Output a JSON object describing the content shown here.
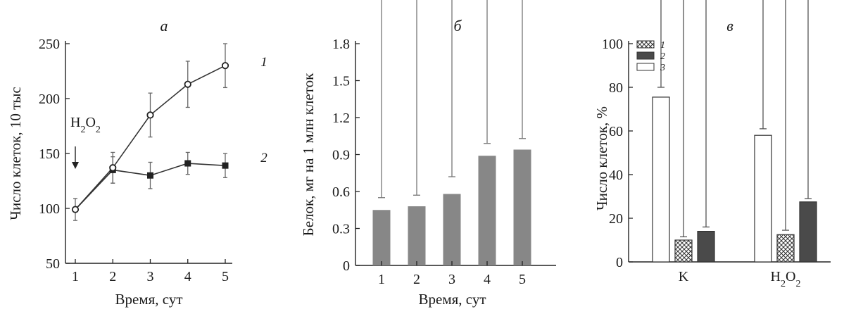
{
  "figure": {
    "panels": [
      {
        "letter": "а",
        "xlabel": "Время, сут",
        "ylabel": "Число клеток, 10 тыс",
        "annotation": "H₂O₂",
        "yticks": [
          50,
          100,
          150,
          200,
          250
        ],
        "xticks": [
          1,
          2,
          3,
          4,
          5
        ]
      },
      {
        "letter": "б",
        "xlabel": "Время, сут",
        "ylabel": "Белок, мг на 1 млн клеток",
        "yticks": [
          "0",
          "0.3",
          "0.6",
          "0.9",
          "1.2",
          "1.5",
          "1.8"
        ],
        "xticks": [
          1,
          2,
          3,
          4,
          5
        ]
      },
      {
        "letter": "в",
        "ylabel": "Число клеток, %",
        "yticks": [
          0,
          20,
          40,
          60,
          80,
          100
        ],
        "legend": [
          "1",
          "2",
          "3"
        ]
      }
    ]
  },
  "chart_data": [
    {
      "type": "line",
      "title": "а",
      "xlabel": "Время, сут",
      "ylabel": "Число клеток, 10 тыс",
      "ylim": [
        50,
        255
      ],
      "xlim": [
        0.7,
        5.3
      ],
      "annotation": {
        "text": "H₂O₂",
        "x": 1
      },
      "series": [
        {
          "name": "1",
          "marker": "open-circle",
          "x": [
            1,
            2,
            3,
            4,
            5
          ],
          "y": [
            99,
            137,
            185,
            213,
            230
          ],
          "err": [
            10,
            14,
            20,
            21,
            20
          ]
        },
        {
          "name": "2",
          "marker": "filled-square",
          "x": [
            2,
            3,
            4,
            5
          ],
          "y": [
            135,
            130,
            141,
            139
          ],
          "err": [
            12,
            12,
            10,
            11
          ],
          "connect_from": {
            "x": 1,
            "y": 99
          }
        }
      ]
    },
    {
      "type": "bar",
      "title": "б",
      "xlabel": "Время, сут",
      "ylabel": "Белок, мг на 1 млн клеток",
      "ylim": [
        0,
        1.8
      ],
      "categories": [
        "1",
        "2",
        "3",
        "4",
        "5"
      ],
      "values": [
        0.45,
        0.48,
        0.58,
        0.89,
        0.94
      ],
      "err": [
        0.1,
        0.09,
        0.14,
        0.1,
        0.09
      ],
      "color": "#878787"
    },
    {
      "type": "bar",
      "title": "в",
      "ylabel": "Число клеток, %",
      "ylim": [
        0,
        100
      ],
      "categories": [
        "K",
        "H₂O₂"
      ],
      "series": [
        {
          "name": "3",
          "fill": "open",
          "values": [
            75.5,
            58
          ],
          "err": [
            4.5,
            3
          ]
        },
        {
          "name": "1",
          "fill": "crosshatch",
          "values": [
            10,
            12.5
          ],
          "err": [
            1.5,
            2
          ]
        },
        {
          "name": "2",
          "fill": "dark",
          "values": [
            14,
            27.5
          ],
          "err": [
            2,
            1.5
          ]
        }
      ],
      "legend_order": [
        "1",
        "2",
        "3"
      ],
      "legend_placement": "top-left"
    }
  ]
}
